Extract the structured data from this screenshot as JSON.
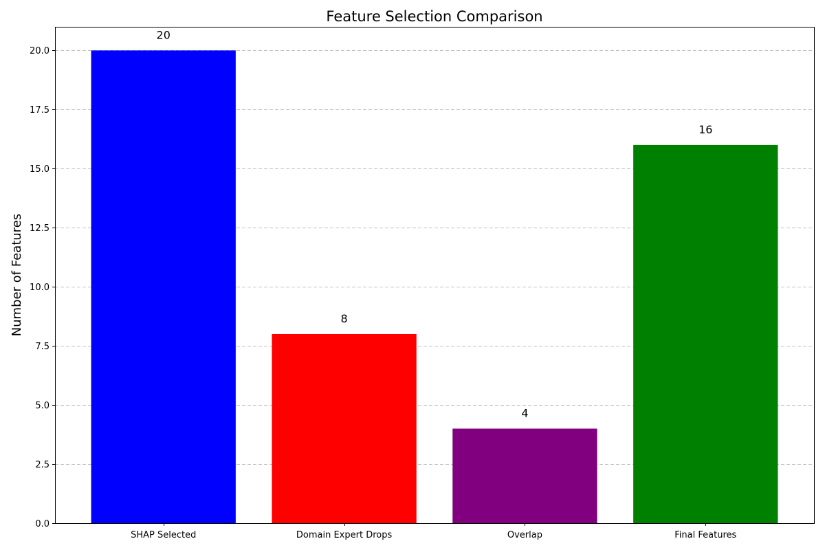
{
  "chart_data": {
    "type": "bar",
    "title": "Feature Selection Comparison",
    "xlabel": "",
    "ylabel": "Number of Features",
    "categories": [
      "SHAP Selected",
      "Domain Expert Drops",
      "Overlap",
      "Final Features"
    ],
    "values": [
      20,
      8,
      4,
      16
    ],
    "data_labels": [
      "20",
      "8",
      "4",
      "16"
    ],
    "colors": [
      "#0000ff",
      "#ff0000",
      "#800080",
      "#008000"
    ],
    "ylim": [
      0,
      21
    ],
    "yticks": [
      0,
      2.5,
      5,
      7.5,
      10,
      12.5,
      15,
      17.5,
      20
    ],
    "ytick_labels": [
      "0.0",
      "2.5",
      "5.0",
      "7.5",
      "10.0",
      "12.5",
      "15.0",
      "17.5",
      "20.0"
    ],
    "grid": "horizontal dashed",
    "legend": "none"
  }
}
